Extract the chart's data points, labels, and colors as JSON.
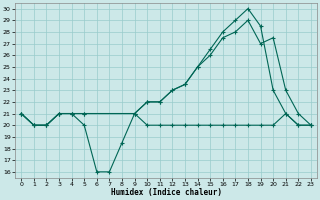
{
  "xlabel": "Humidex (Indice chaleur)",
  "bg_color": "#cce8e8",
  "grid_color": "#99cccc",
  "line_color": "#006655",
  "xlim": [
    -0.5,
    23.5
  ],
  "ylim": [
    15.5,
    30.5
  ],
  "xticks": [
    0,
    1,
    2,
    3,
    4,
    5,
    6,
    7,
    8,
    9,
    10,
    11,
    12,
    13,
    14,
    15,
    16,
    17,
    18,
    19,
    20,
    21,
    22,
    23
  ],
  "yticks": [
    16,
    17,
    18,
    19,
    20,
    21,
    22,
    23,
    24,
    25,
    26,
    27,
    28,
    29,
    30
  ],
  "line1_x": [
    0,
    1,
    2,
    3,
    4,
    5,
    6,
    7,
    8,
    9,
    10,
    11,
    12,
    13,
    14,
    15,
    16,
    17,
    18,
    19,
    20,
    21,
    22,
    23
  ],
  "line1_y": [
    21,
    20,
    20,
    21,
    21,
    20,
    16,
    16,
    18.5,
    21,
    20,
    20,
    20,
    20,
    20,
    20,
    20,
    20,
    20,
    20,
    20,
    21,
    20,
    20
  ],
  "line2_x": [
    0,
    1,
    2,
    3,
    4,
    5,
    9,
    10,
    11,
    12,
    13,
    14,
    15,
    16,
    17,
    18,
    19,
    20,
    21,
    22,
    23
  ],
  "line2_y": [
    21,
    20,
    20,
    21,
    21,
    21,
    21,
    22,
    22,
    23,
    23.5,
    25,
    26.5,
    28,
    29,
    30,
    28.5,
    23,
    21,
    20,
    20
  ],
  "line3_x": [
    0,
    1,
    2,
    3,
    4,
    5,
    9,
    10,
    11,
    12,
    13,
    14,
    15,
    16,
    17,
    18,
    19,
    20,
    21,
    22,
    23
  ],
  "line3_y": [
    21,
    20,
    20,
    21,
    21,
    21,
    21,
    22,
    22,
    23,
    23.5,
    25,
    26,
    27.5,
    28,
    29,
    27,
    27.5,
    23,
    21,
    20
  ]
}
